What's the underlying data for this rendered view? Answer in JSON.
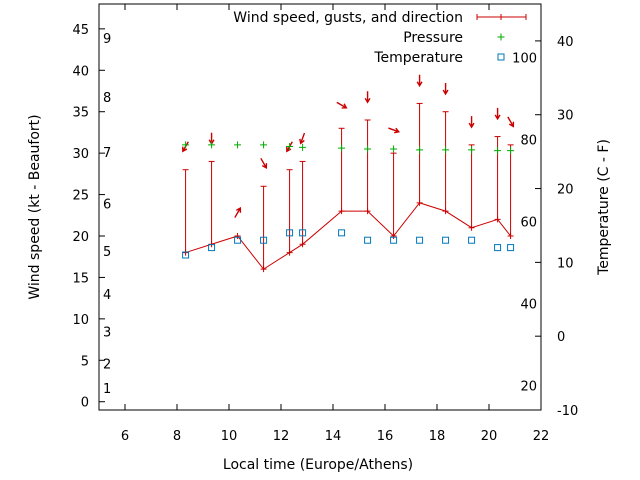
{
  "chart_data": {
    "type": "line",
    "xlabel": "Local time (Europe/Athens)",
    "ylabel": "Wind speed (kt - Beaufort)",
    "y2label": "Temperature (C - F)",
    "xlim": [
      5,
      22
    ],
    "ylim": [
      -1,
      48
    ],
    "y2lim": [
      -10,
      45
    ],
    "x_ticks": [
      "6",
      "8",
      "10",
      "12",
      "14",
      "16",
      "18",
      "20",
      "22"
    ],
    "y_ticks": [
      "0",
      "5",
      "10",
      "15",
      "20",
      "25",
      "30",
      "35",
      "40",
      "45"
    ],
    "beaufort_ticks": [
      "1",
      "2",
      "3",
      "4",
      "5",
      "6",
      "7",
      "8",
      "9"
    ],
    "y2_ticks": [
      "-10",
      "0",
      "10",
      "20",
      "30",
      "40"
    ],
    "fahrenheit_ticks": [
      "20",
      "40",
      "60",
      "80",
      "100"
    ],
    "grid": false,
    "legend_position": "top-right",
    "legend": {
      "wind": "Wind speed, gusts, and direction",
      "pressure": "Pressure",
      "temperature": "Temperature"
    },
    "colors": {
      "wind": "#cc0000",
      "pressure": "#00aa00",
      "temperature": "#0077bb"
    },
    "series": [
      {
        "name": "Wind speed, gusts, and direction",
        "x": [
          8.33,
          9.33,
          10.33,
          11.33,
          12.33,
          12.83,
          14.33,
          15.33,
          16.33,
          17.33,
          18.33,
          19.33,
          20.33,
          20.83
        ],
        "speed": [
          18,
          19,
          20,
          16,
          18,
          19,
          23,
          23,
          20,
          24,
          23,
          21,
          22,
          20
        ],
        "gust": [
          28,
          29,
          20,
          26,
          28,
          29,
          33,
          34,
          30,
          36,
          35,
          31,
          32,
          31
        ],
        "direction_deg": [
          30,
          0,
          210,
          330,
          30,
          20,
          300,
          0,
          290,
          0,
          0,
          0,
          0,
          330
        ]
      },
      {
        "name": "Pressure",
        "x": [
          8.33,
          9.33,
          10.33,
          11.33,
          12.33,
          12.83,
          14.33,
          15.33,
          16.33,
          17.33,
          18.33,
          19.33,
          20.33,
          20.83
        ],
        "values": [
          31,
          31,
          31,
          31,
          30.8,
          30.7,
          30.6,
          30.5,
          30.5,
          30.4,
          30.4,
          30.4,
          30.3,
          30.3
        ]
      },
      {
        "name": "Temperature",
        "x": [
          8.33,
          9.33,
          10.33,
          11.33,
          12.33,
          12.83,
          14.33,
          15.33,
          16.33,
          17.33,
          18.33,
          19.33,
          20.33,
          20.83
        ],
        "values": [
          11,
          12,
          13,
          13,
          14,
          14,
          14,
          13,
          13,
          13,
          13,
          13,
          12,
          12
        ]
      }
    ]
  }
}
